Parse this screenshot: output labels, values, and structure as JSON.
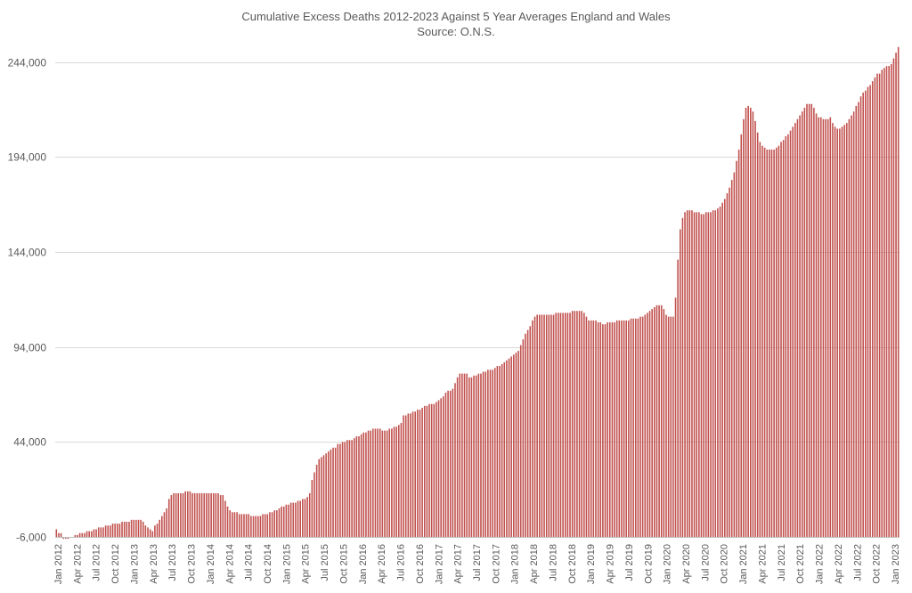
{
  "chart_data": {
    "type": "bar",
    "title": "Cumulative Excess Deaths 2012-2023 Against 5 Year Averages England and Wales",
    "subtitle": "Source: O.N.S.",
    "xlabel": "",
    "ylabel": "",
    "ylim": [
      -6000,
      258000
    ],
    "yticks": [
      -6000,
      44000,
      94000,
      144000,
      194000,
      244000
    ],
    "ytick_labels": [
      "-6,000",
      "44,000",
      "94,000",
      "144,000",
      "194,000",
      "244,000"
    ],
    "xtick_labels": [
      "Jan 2012",
      "Apr 2012",
      "Jul 2012",
      "Oct 2012",
      "Jan 2013",
      "Apr 2013",
      "Jul 2013",
      "Oct 2013",
      "Jan 2014",
      "Apr 2014",
      "Jul 2014",
      "Oct 2014",
      "Jan 2015",
      "Apr 2015",
      "Jul 2015",
      "Oct 2015",
      "Jan 2016",
      "Apr 2016",
      "Jul 2016",
      "Oct 2016",
      "Jan 2017",
      "Apr 2017",
      "Jul 2017",
      "Oct 2017",
      "Jan 2018",
      "Apr 2018",
      "Jul 2018",
      "Oct 2018",
      "Jan 2019",
      "Apr 2019",
      "Jul 2019",
      "Oct 2019",
      "Jan 2020",
      "Apr 2020",
      "Jul 2020",
      "Oct 2020",
      "Jan 2021",
      "Apr 2021",
      "Jul 2021",
      "Oct 2021",
      "Jan 2022",
      "Apr 2022",
      "Jul 2022",
      "Oct 2022",
      "Jan 2023"
    ],
    "grid": true,
    "legend": "none",
    "bar_color": "#c0504d",
    "series": [
      {
        "values": [
          -2000,
          -4000,
          -4000,
          -7000,
          -7000,
          -7000,
          -6000,
          -6000,
          -5000,
          -5000,
          -4000,
          -4000,
          -4000,
          -3000,
          -3000,
          -3000,
          -2000,
          -2000,
          -1000,
          -1000,
          -1000,
          0,
          0,
          0,
          1000,
          1000,
          1000,
          1000,
          2000,
          2000,
          2000,
          2000,
          3000,
          3000,
          3000,
          3000,
          3000,
          2000,
          0,
          -1000,
          -2000,
          -3000,
          0,
          1000,
          3000,
          5000,
          7000,
          9000,
          14000,
          16000,
          17000,
          17000,
          17000,
          17000,
          17000,
          18000,
          18000,
          18000,
          17000,
          17000,
          17000,
          17000,
          17000,
          17000,
          17000,
          17000,
          17000,
          17000,
          17000,
          17000,
          16000,
          16000,
          13000,
          10000,
          8000,
          7000,
          7000,
          7000,
          6000,
          6000,
          6000,
          6000,
          6000,
          5000,
          5000,
          5000,
          5000,
          5000,
          6000,
          6000,
          6000,
          7000,
          7000,
          8000,
          8000,
          9000,
          10000,
          10000,
          11000,
          11000,
          12000,
          12000,
          12000,
          13000,
          13000,
          14000,
          14000,
          15000,
          17000,
          24000,
          28000,
          32000,
          35000,
          36000,
          37000,
          38000,
          39000,
          40000,
          41000,
          41000,
          43000,
          43000,
          44000,
          44000,
          45000,
          45000,
          45000,
          46000,
          47000,
          47000,
          48000,
          49000,
          49000,
          50000,
          50000,
          51000,
          51000,
          51000,
          51000,
          50000,
          50000,
          50000,
          51000,
          51000,
          52000,
          52000,
          53000,
          54000,
          58000,
          58000,
          59000,
          59000,
          60000,
          60000,
          61000,
          61000,
          62000,
          63000,
          63000,
          64000,
          64000,
          64000,
          65000,
          66000,
          67000,
          68000,
          70000,
          71000,
          71000,
          72000,
          75000,
          78000,
          80000,
          80000,
          80000,
          80000,
          78000,
          78000,
          79000,
          79000,
          80000,
          80000,
          81000,
          81000,
          82000,
          82000,
          82000,
          83000,
          84000,
          84000,
          85000,
          86000,
          87000,
          88000,
          89000,
          90000,
          91000,
          92000,
          95000,
          98000,
          101000,
          103000,
          105000,
          108000,
          110000,
          111000,
          111000,
          111000,
          111000,
          111000,
          111000,
          111000,
          111000,
          112000,
          112000,
          112000,
          112000,
          112000,
          112000,
          112000,
          113000,
          113000,
          113000,
          113000,
          113000,
          112000,
          110000,
          108000,
          108000,
          108000,
          108000,
          107000,
          107000,
          106000,
          106000,
          107000,
          107000,
          107000,
          107000,
          108000,
          108000,
          108000,
          108000,
          108000,
          108000,
          109000,
          109000,
          109000,
          109000,
          110000,
          110000,
          111000,
          112000,
          113000,
          114000,
          115000,
          116000,
          116000,
          116000,
          114000,
          111000,
          110000,
          110000,
          110000,
          120000,
          140000,
          156000,
          162000,
          165000,
          166000,
          166000,
          166000,
          165000,
          165000,
          165000,
          164000,
          164000,
          165000,
          165000,
          165000,
          166000,
          166000,
          167000,
          168000,
          170000,
          172000,
          175000,
          178000,
          182000,
          186000,
          192000,
          198000,
          206000,
          214000,
          220000,
          221000,
          220000,
          218000,
          213000,
          207000,
          202000,
          200000,
          199000,
          198000,
          198000,
          198000,
          198000,
          199000,
          200000,
          202000,
          203000,
          205000,
          206000,
          208000,
          210000,
          212000,
          214000,
          216000,
          218000,
          220000,
          222000,
          222000,
          222000,
          220000,
          217000,
          215000,
          215000,
          214000,
          214000,
          214000,
          215000,
          212000,
          210000,
          209000,
          209000,
          210000,
          211000,
          212000,
          214000,
          216000,
          218000,
          221000,
          223000,
          226000,
          228000,
          229000,
          231000,
          232000,
          234000,
          236000,
          238000,
          238000,
          240000,
          241000,
          242000,
          242000,
          243000,
          246000,
          249000,
          252000
        ]
      }
    ]
  }
}
